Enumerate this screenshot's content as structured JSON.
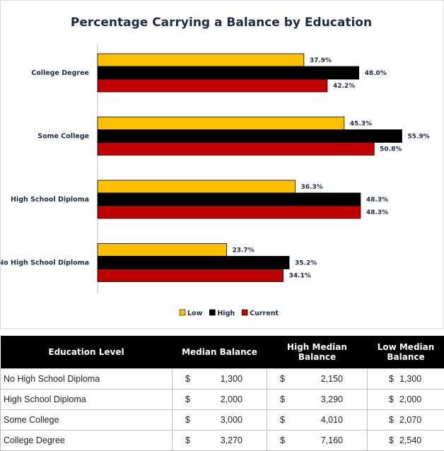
{
  "chart_data": {
    "type": "bar",
    "orientation": "horizontal",
    "title": "Percentage Carrying a Balance by Education",
    "categories": [
      "College Degree",
      "Some College",
      "High School Diploma",
      "No High School Diploma"
    ],
    "series": [
      {
        "name": "Low",
        "color": "#FFC000",
        "values": [
          37.9,
          45.3,
          36.3,
          23.7
        ],
        "labels": [
          "37.9%",
          "45.3%",
          "36.3%",
          "23.7%"
        ]
      },
      {
        "name": "High",
        "color": "#000000",
        "values": [
          48.0,
          55.9,
          48.3,
          35.2
        ],
        "labels": [
          "48.0%",
          "55.9%",
          "48.3%",
          "35.2%"
        ]
      },
      {
        "name": "Current",
        "color": "#C00000",
        "values": [
          42.2,
          50.8,
          48.3,
          34.1
        ],
        "labels": [
          "42.2%",
          "50.8%",
          "48.3%",
          "34.1%"
        ]
      }
    ],
    "xlim": [
      0,
      60
    ],
    "grid": false,
    "legend": "bottom"
  },
  "table": {
    "headers": [
      "Education Level",
      "Median Balance",
      "High Median Balance",
      "Low Median Balance"
    ],
    "rows": [
      {
        "level": "No High School Diploma",
        "median": "1,300",
        "high": "2,150",
        "low": "1,300"
      },
      {
        "level": "High School Diploma",
        "median": "2,000",
        "high": "3,290",
        "low": "2,000"
      },
      {
        "level": "Some College",
        "median": "3,000",
        "high": "4,010",
        "low": "2,070"
      },
      {
        "level": "College Degree",
        "median": "3,270",
        "high": "7,160",
        "low": "2,540"
      }
    ],
    "currency_symbol": "$"
  }
}
